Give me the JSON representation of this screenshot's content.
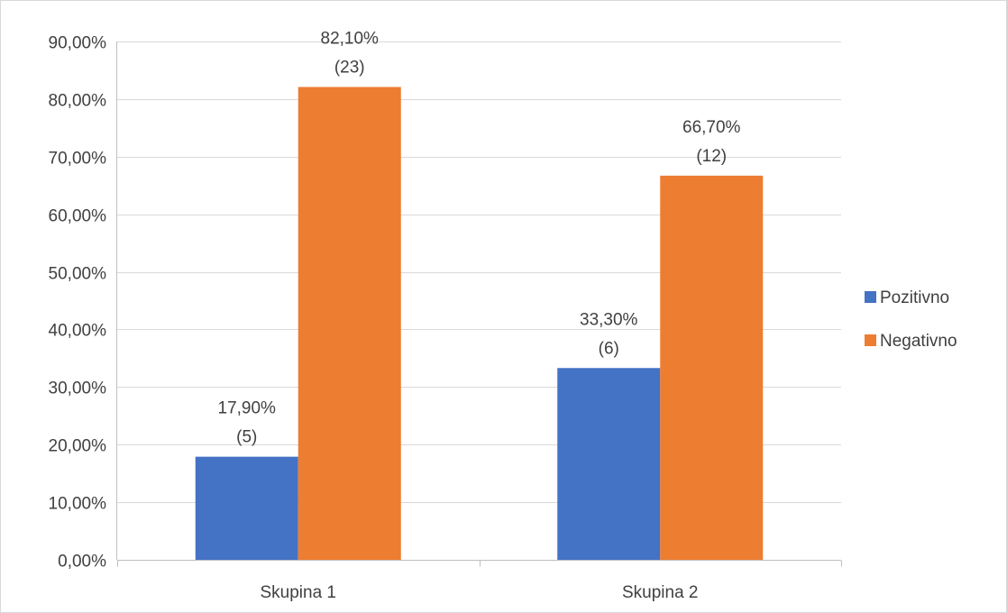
{
  "chart_data": {
    "type": "bar",
    "categories": [
      "Skupina 1",
      "Skupina 2"
    ],
    "series": [
      {
        "name": "Pozitivno",
        "color": "#4472c4",
        "values": [
          17.9,
          33.3
        ],
        "labels": [
          "17,90%",
          "33,30%"
        ],
        "counts": [
          "(5)",
          "(6)"
        ]
      },
      {
        "name": "Negativno",
        "color": "#ed7d31",
        "values": [
          82.1,
          66.7
        ],
        "labels": [
          "82,10%",
          "66,70%"
        ],
        "counts": [
          "(23)",
          "(12)"
        ]
      }
    ],
    "ylim": [
      0,
      90
    ],
    "yticks": [
      0,
      10,
      20,
      30,
      40,
      50,
      60,
      70,
      80,
      90
    ],
    "ytick_labels": [
      "0,00%",
      "10,00%",
      "20,00%",
      "30,00%",
      "40,00%",
      "50,00%",
      "60,00%",
      "70,00%",
      "80,00%",
      "90,00%"
    ],
    "grid": true,
    "legend_position": "right",
    "gridline_color": "#d9d9d9",
    "axis_color": "#bfbfbf"
  }
}
